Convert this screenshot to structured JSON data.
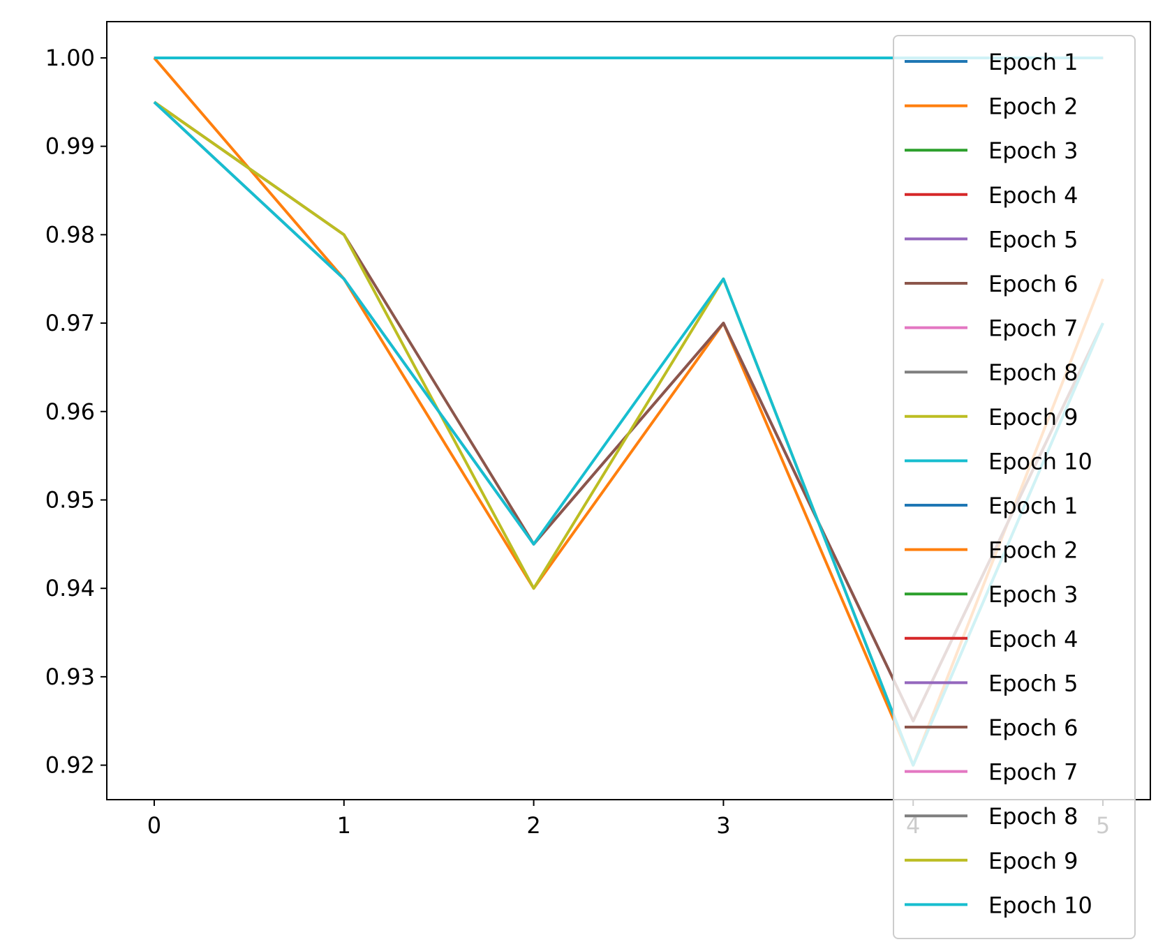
{
  "chart_data": {
    "type": "line",
    "title": "",
    "xlabel": "",
    "ylabel": "",
    "x": [
      0,
      1,
      2,
      3,
      4,
      5
    ],
    "xticks": [
      "0",
      "1",
      "2",
      "3",
      "4",
      "5"
    ],
    "yticks": [
      "0.92",
      "0.93",
      "0.94",
      "0.95",
      "0.96",
      "0.97",
      "0.98",
      "0.99",
      "1.00"
    ],
    "ytick_values": [
      0.92,
      0.93,
      0.94,
      0.95,
      0.96,
      0.97,
      0.98,
      0.99,
      1.0
    ],
    "xlim": [
      -0.25,
      5.25
    ],
    "ylim": [
      0.9161,
      1.0041
    ],
    "grid": false,
    "legend_position": "right (overlapping plot, extends below axes)",
    "series": [
      {
        "name": "Epoch 1",
        "color": "#1f77b4",
        "values": [
          1.0,
          1.0,
          1.0,
          1.0,
          1.0,
          1.0
        ]
      },
      {
        "name": "Epoch 2",
        "color": "#ff7f0e",
        "values": [
          1.0,
          0.975,
          0.94,
          0.97,
          0.92,
          0.975
        ]
      },
      {
        "name": "Epoch 3",
        "color": "#2ca02c",
        "values": [
          1.0,
          1.0,
          1.0,
          1.0,
          1.0,
          1.0
        ]
      },
      {
        "name": "Epoch 4",
        "color": "#d62728",
        "values": [
          1.0,
          1.0,
          1.0,
          1.0,
          1.0,
          1.0
        ]
      },
      {
        "name": "Epoch 5",
        "color": "#9467bd",
        "values": [
          0.995,
          0.975,
          0.945,
          0.97,
          0.925,
          0.97
        ]
      },
      {
        "name": "Epoch 6",
        "color": "#8c564b",
        "values": [
          0.995,
          0.98,
          0.945,
          0.97,
          0.925,
          0.97
        ]
      },
      {
        "name": "Epoch 7",
        "color": "#e377c2",
        "values": [
          1.0,
          1.0,
          1.0,
          1.0,
          1.0,
          1.0
        ]
      },
      {
        "name": "Epoch 8",
        "color": "#7f7f7f",
        "values": [
          1.0,
          1.0,
          1.0,
          1.0,
          1.0,
          1.0
        ]
      },
      {
        "name": "Epoch 9",
        "color": "#bcbd22",
        "values": [
          0.995,
          0.98,
          0.94,
          0.975,
          0.92,
          0.97
        ]
      },
      {
        "name": "Epoch 10",
        "color": "#17becf",
        "values": [
          0.995,
          0.975,
          0.945,
          0.975,
          0.92,
          0.97
        ]
      },
      {
        "name": "Epoch 1",
        "color": "#1f77b4",
        "values": [
          1.0,
          1.0,
          1.0,
          1.0,
          1.0,
          1.0
        ]
      },
      {
        "name": "Epoch 2",
        "color": "#ff7f0e",
        "values": [
          1.0,
          1.0,
          1.0,
          1.0,
          1.0,
          1.0
        ]
      },
      {
        "name": "Epoch 3",
        "color": "#2ca02c",
        "values": [
          1.0,
          1.0,
          1.0,
          1.0,
          1.0,
          1.0
        ]
      },
      {
        "name": "Epoch 4",
        "color": "#d62728",
        "values": [
          1.0,
          1.0,
          1.0,
          1.0,
          1.0,
          1.0
        ]
      },
      {
        "name": "Epoch 5",
        "color": "#9467bd",
        "values": [
          1.0,
          1.0,
          1.0,
          1.0,
          1.0,
          1.0
        ]
      },
      {
        "name": "Epoch 6",
        "color": "#8c564b",
        "values": [
          1.0,
          1.0,
          1.0,
          1.0,
          1.0,
          1.0
        ]
      },
      {
        "name": "Epoch 7",
        "color": "#e377c2",
        "values": [
          1.0,
          1.0,
          1.0,
          1.0,
          1.0,
          1.0
        ]
      },
      {
        "name": "Epoch 8",
        "color": "#7f7f7f",
        "values": [
          1.0,
          1.0,
          1.0,
          1.0,
          1.0,
          1.0
        ]
      },
      {
        "name": "Epoch 9",
        "color": "#bcbd22",
        "values": [
          1.0,
          1.0,
          1.0,
          1.0,
          1.0,
          1.0
        ]
      },
      {
        "name": "Epoch 10",
        "color": "#17becf",
        "values": [
          1.0,
          1.0,
          1.0,
          1.0,
          1.0,
          1.0
        ]
      }
    ]
  }
}
